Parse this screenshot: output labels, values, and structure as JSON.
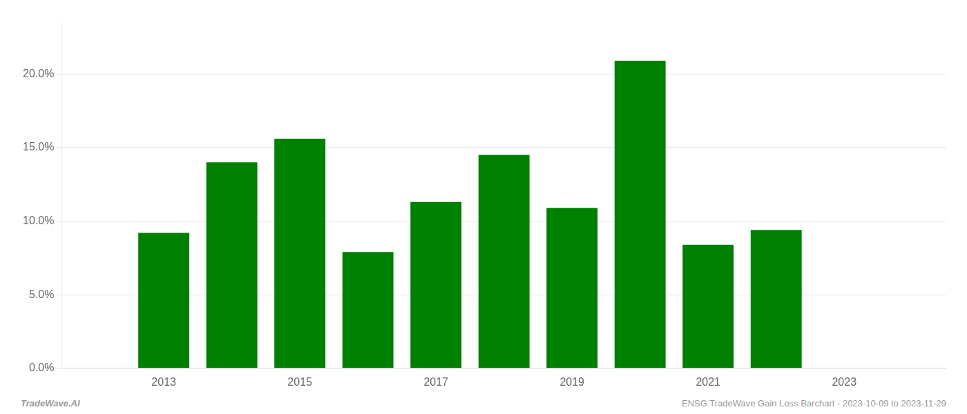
{
  "chart_data": {
    "type": "bar",
    "x": [
      2013,
      2014,
      2015,
      2016,
      2017,
      2018,
      2019,
      2020,
      2021,
      2022
    ],
    "values": [
      0.092,
      0.14,
      0.156,
      0.079,
      0.113,
      0.145,
      0.109,
      0.209,
      0.084,
      0.094
    ],
    "color": "#008000",
    "xlim": [
      2011.5,
      2024.5
    ],
    "xticks": [
      2013,
      2015,
      2017,
      2019,
      2021,
      2023
    ],
    "ylim": [
      0.0,
      0.235
    ],
    "yticks": [
      {
        "value": 0.0,
        "label": "0.0%"
      },
      {
        "value": 0.05,
        "label": "5.0%"
      },
      {
        "value": 0.1,
        "label": "10.0%"
      },
      {
        "value": 0.15,
        "label": "15.0%"
      },
      {
        "value": 0.2,
        "label": "20.0%"
      }
    ],
    "grid": "y",
    "annotations": [
      "TradeWave.AI",
      "ENSG TradeWave Gain Loss Barchart - 2023-10-09 to 2023-11-29"
    ]
  }
}
